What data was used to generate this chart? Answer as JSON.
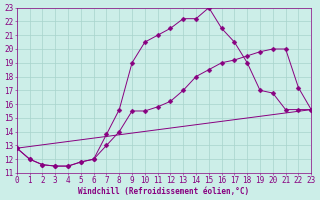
{
  "title": "",
  "xlabel": "Windchill (Refroidissement éolien,°C)",
  "bg_color": "#cceee8",
  "grid_color": "#a8d4cc",
  "line_color": "#880080",
  "xlim": [
    0,
    23
  ],
  "ylim": [
    11,
    23
  ],
  "ytick_vals": [
    11,
    12,
    13,
    14,
    15,
    16,
    17,
    18,
    19,
    20,
    21,
    22,
    23
  ],
  "xtick_vals": [
    0,
    1,
    2,
    3,
    4,
    5,
    6,
    7,
    8,
    9,
    10,
    11,
    12,
    13,
    14,
    15,
    16,
    17,
    18,
    19,
    20,
    21,
    22,
    23
  ],
  "line1_x": [
    0,
    1,
    2,
    3,
    4,
    5,
    6,
    7,
    8,
    9,
    10,
    11,
    12,
    13,
    14,
    15,
    16,
    17,
    18,
    19,
    20,
    21,
    22,
    23
  ],
  "line1_y": [
    12.8,
    12.0,
    11.6,
    11.5,
    11.5,
    11.8,
    12.0,
    13.8,
    15.6,
    19.0,
    20.5,
    21.0,
    21.5,
    22.2,
    22.2,
    23.0,
    21.5,
    20.5,
    19.0,
    17.0,
    16.8,
    15.6,
    15.6,
    15.6
  ],
  "line2_x": [
    0,
    1,
    2,
    3,
    4,
    5,
    6,
    7,
    8,
    9,
    10,
    11,
    12,
    13,
    14,
    15,
    16,
    17,
    18,
    19,
    20,
    21,
    22,
    23
  ],
  "line2_y": [
    12.8,
    12.0,
    11.6,
    11.5,
    11.5,
    11.8,
    12.0,
    13.0,
    14.0,
    15.5,
    15.5,
    15.8,
    16.2,
    17.0,
    18.0,
    18.5,
    19.0,
    19.2,
    19.5,
    19.8,
    20.0,
    20.0,
    17.2,
    15.6
  ],
  "line3_x": [
    0,
    23
  ],
  "line3_y": [
    12.8,
    15.6
  ],
  "marker_size": 2.5
}
